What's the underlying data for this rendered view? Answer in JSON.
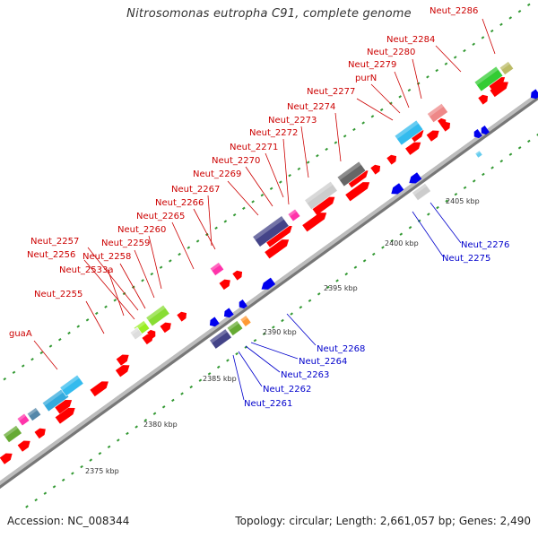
{
  "title": "Nitrosomonas eutropha C91, complete genome",
  "footer": {
    "accession": "Accession: NC_008344",
    "summary": "Topology: circular; Length: 2,661,057 bp; Genes: 2,490"
  },
  "colors": {
    "backbone": "#aaaaaa",
    "forward_cds": "#ff0000",
    "reverse_cds": "#0000ee",
    "forward_label": "#cc0000",
    "reverse_label": "#0000cc",
    "tick": "#339933"
  },
  "scale_labels": [
    "2375 kbp",
    "2380 kbp",
    "2385 kbp",
    "2390 kbp",
    "2395 kbp",
    "2400 kbp",
    "2405 kbp"
  ],
  "forward_labels": [
    "guaA",
    "Neut_2255",
    "Neut_2533a",
    "Neut_2256",
    "Neut_2257",
    "Neut_2258",
    "Neut_2259",
    "Neut_2260",
    "Neut_2265",
    "Neut_2266",
    "Neut_2267",
    "Neut_2269",
    "Neut_2270",
    "Neut_2271",
    "Neut_2272",
    "Neut_2273",
    "Neut_2274",
    "Neut_2277",
    "purN",
    "Neut_2279",
    "Neut_2280",
    "Neut_2284",
    "Neut_2286"
  ],
  "reverse_labels": [
    "Neut_2261",
    "Neut_2262",
    "Neut_2263",
    "Neut_2264",
    "Neut_2268",
    "Neut_2275",
    "Neut_2276"
  ]
}
